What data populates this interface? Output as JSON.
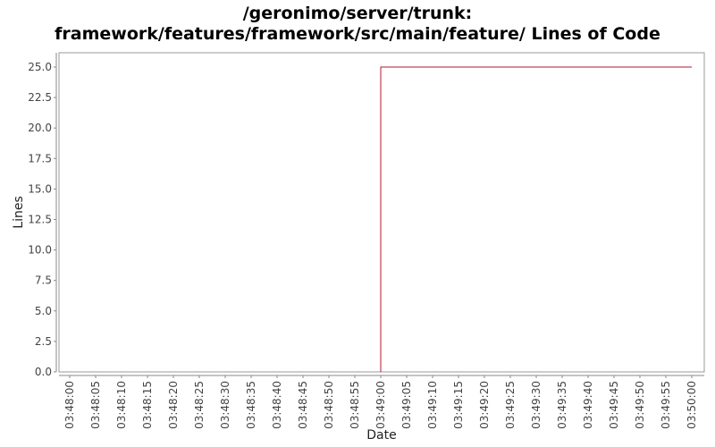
{
  "title_line1": "/geronimo/server/trunk:",
  "title_line2": "framework/features/framework/src/main/feature/ Lines of Code",
  "colors": {
    "series": "#b2182b",
    "axis": "#888888",
    "plot_border": "#999999",
    "background": "#ffffff"
  },
  "chart_data": {
    "type": "line",
    "title": "/geronimo/server/trunk: framework/features/framework/src/main/feature/ Lines of Code",
    "xlabel": "Date",
    "ylabel": "Lines",
    "xlim": [
      "03:48:00",
      "03:50:00"
    ],
    "ylim": [
      0,
      25
    ],
    "grid": false,
    "legend": "none",
    "x_ticks": [
      "03:48:00",
      "03:48:05",
      "03:48:10",
      "03:48:15",
      "03:48:20",
      "03:48:25",
      "03:48:30",
      "03:48:35",
      "03:48:40",
      "03:48:45",
      "03:48:50",
      "03:48:55",
      "03:49:00",
      "03:49:05",
      "03:49:10",
      "03:49:15",
      "03:49:20",
      "03:49:25",
      "03:49:30",
      "03:49:35",
      "03:49:40",
      "03:49:45",
      "03:49:50",
      "03:49:55",
      "03:50:00"
    ],
    "y_ticks": [
      "0.0",
      "2.5",
      "5.0",
      "7.5",
      "10.0",
      "12.5",
      "15.0",
      "17.5",
      "20.0",
      "22.5",
      "25.0"
    ],
    "series": [
      {
        "x": [
          "03:49:00",
          "03:49:00",
          "03:50:00"
        ],
        "y": [
          0,
          25,
          25
        ]
      }
    ]
  }
}
